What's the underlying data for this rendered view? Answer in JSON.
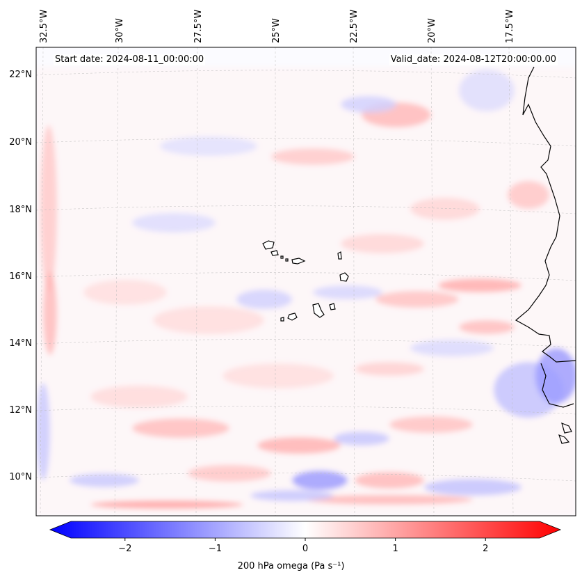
{
  "map": {
    "start_date": "Start date: 2024-08-11_00:00:00",
    "valid_date": "Valid_date: 2024-08-12T20:00:00.00",
    "longitude_labels": [
      "32.5°W",
      "30°W",
      "27.5°W",
      "25°W",
      "22.5°W",
      "20°W",
      "17.5°W"
    ],
    "latitude_labels": [
      "22°N",
      "20°N",
      "18°N",
      "16°N",
      "14°N",
      "12°N",
      "10°N"
    ],
    "field": "200 hPa omega",
    "islands": "Cape Verde",
    "coastline": "West Africa"
  },
  "colorbar": {
    "label": "200 hPa omega (Pa s⁻¹)",
    "ticks": [
      "−2",
      "−1",
      "0",
      "1",
      "2"
    ],
    "tick_values": [
      -2,
      -1,
      0,
      1,
      2
    ],
    "range": [
      -2.6,
      2.6
    ],
    "colormap": "bwr",
    "colors": {
      "negative": "#0000ff",
      "zero": "#ffffff",
      "positive": "#ff0000"
    }
  }
}
